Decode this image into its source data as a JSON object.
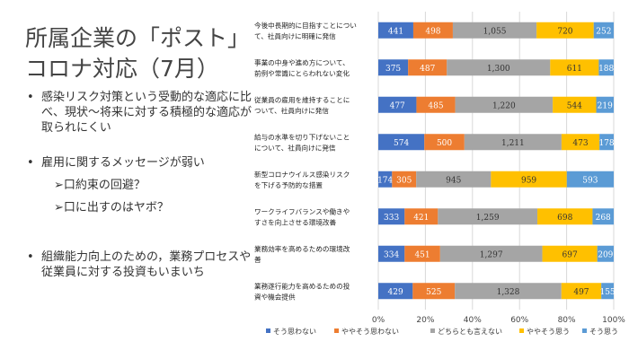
{
  "slide": {
    "title_line1": "所属企業の「ポスト」",
    "title_line2": "コロナ対応（7月）",
    "bullet_symbol": "•",
    "sub_symbol": "➢",
    "bullets": [
      {
        "text": "感染リスク対策という受動的な適応に比べ、現状～将来に対する積極的な適応が取られにくい"
      },
      {
        "text": "雇用に関するメッセージが弱い"
      },
      {
        "text": "組織能力向上のための，業務プロセスや従業員に対する投資もいまいち"
      }
    ],
    "sub_bullets": [
      "口約束の回避？",
      "口に出すのはヤボ？"
    ]
  },
  "chart_data": {
    "type": "bar",
    "orientation": "horizontal",
    "stacked": "percent",
    "categories": [
      [
        "今後中長期的に目指すことについ",
        "て、社員向けに明確に発信"
      ],
      [
        "事業の中身や進め方について、",
        "前例や常識にとらわれない変化"
      ],
      [
        "従業員の雇用を維持することに",
        "ついて、社員向けに発信"
      ],
      [
        "給与の水準を切り下げないこと",
        "について、社員向けに発信"
      ],
      [
        "新型コロナウイルス感染リスク",
        "を下げる予防的な措置"
      ],
      [
        "ワークライフバランスや働きや",
        "すさを向上させる環境改善"
      ],
      [
        "業務効率を高めるための環境改",
        "善"
      ],
      [
        "業務遂行能力を高めるための投",
        "資や機会提供"
      ]
    ],
    "series": [
      {
        "name": "そう思わない",
        "color": "#4472C4",
        "values": [
          441,
          375,
          477,
          574,
          174,
          333,
          334,
          429
        ]
      },
      {
        "name": "ややそう思わない",
        "color": "#ED7D31",
        "values": [
          498,
          487,
          485,
          500,
          305,
          421,
          451,
          525
        ]
      },
      {
        "name": "どちらとも言えない",
        "color": "#A5A5A5",
        "values": [
          1055,
          1300,
          1220,
          1211,
          945,
          1259,
          1297,
          1328
        ]
      },
      {
        "name": "ややそう思う",
        "color": "#FFC000",
        "values": [
          720,
          611,
          544,
          473,
          959,
          698,
          697,
          497
        ]
      },
      {
        "name": "そう思う",
        "color": "#5B9BD5",
        "values": [
          252,
          188,
          219,
          178,
          593,
          268,
          209,
          155
        ]
      }
    ],
    "xlim": [
      0,
      100
    ],
    "x_ticks": [
      "0%",
      "20%",
      "40%",
      "60%",
      "80%",
      "100%"
    ],
    "grid": true,
    "legend_position": "bottom"
  }
}
